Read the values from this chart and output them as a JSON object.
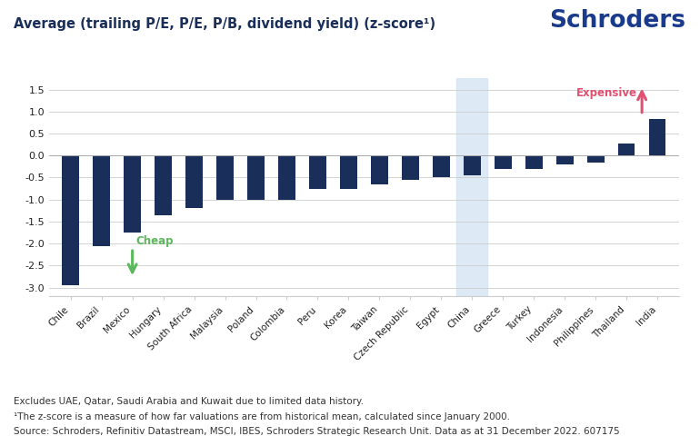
{
  "categories": [
    "Chile",
    "Brazil",
    "Mexico",
    "Hungary",
    "South Africa",
    "Malaysia",
    "Poland",
    "Colombia",
    "Peru",
    "Korea",
    "Taiwan",
    "Czech Republic",
    "Egypt",
    "China",
    "Greece",
    "Turkey",
    "Indonesia",
    "Philippines",
    "Thailand",
    "India"
  ],
  "values": [
    -2.95,
    -2.05,
    -1.75,
    -1.35,
    -1.2,
    -1.0,
    -1.0,
    -1.0,
    -0.75,
    -0.75,
    -0.65,
    -0.55,
    -0.5,
    -0.45,
    -0.3,
    -0.3,
    -0.2,
    -0.15,
    0.28,
    0.82
  ],
  "bar_color": "#1a2e5a",
  "china_highlight_color": "#cfe2f3",
  "china_index": 13,
  "cheap_arrow_color": "#5cb85c",
  "expensive_arrow_color": "#e05070",
  "cheap_label": "Cheap",
  "expensive_label": "Expensive",
  "title": "Average (trailing P/E, P/E, P/B, dividend yield) (z-score¹)",
  "title_fontsize": 10.5,
  "title_color": "#1a2e5a",
  "schroders_text": "Schroders",
  "schroders_color": "#1a3a8c",
  "ylim": [
    -3.2,
    1.75
  ],
  "yticks": [
    -3.0,
    -2.5,
    -2.0,
    -1.5,
    -1.0,
    -0.5,
    0.0,
    0.5,
    1.0,
    1.5
  ],
  "footnote1": "Excludes UAE, Qatar, Saudi Arabia and Kuwait due to limited data history.",
  "footnote2": "¹The z-score is a measure of how far valuations are from historical mean, calculated since January 2000.",
  "footnote3": "Source: Schroders, Refinitiv Datastream, MSCI, IBES, Schroders Strategic Research Unit. Data as at 31 December 2022. 607175",
  "footnote_fontsize": 7.5,
  "bar_width": 0.55
}
